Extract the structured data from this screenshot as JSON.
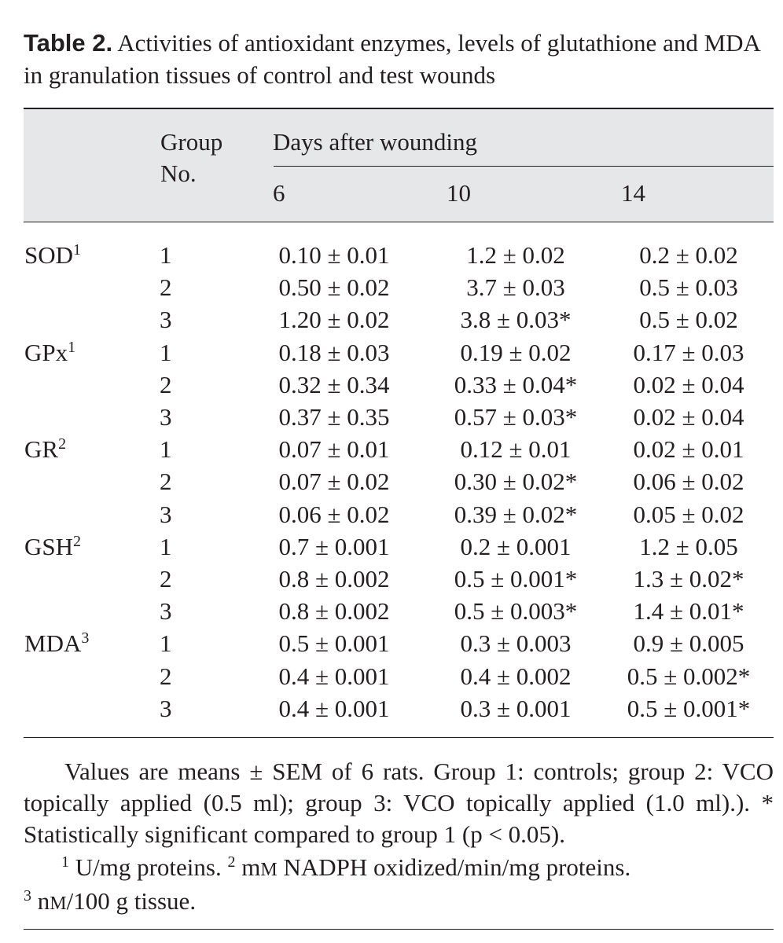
{
  "caption": {
    "label": "Table 2.",
    "text": "Activities of antioxidant enzymes, levels of glutathione and MDA in granulation tissues of control and test wounds"
  },
  "header": {
    "group_line1": "Group",
    "group_line2": "No.",
    "span_label": "Days after wounding",
    "days": [
      "6",
      "10",
      "14"
    ]
  },
  "rows": [
    {
      "label": "SOD",
      "sup": "1",
      "group": "1",
      "d6": "0.10 ± 0.01",
      "d10": "1.2 ± 0.02",
      "d14": "0.2 ± 0.02"
    },
    {
      "label": "",
      "sup": "",
      "group": "2",
      "d6": "0.50 ± 0.02",
      "d10": "3.7 ± 0.03",
      "d14": "0.5 ± 0.03"
    },
    {
      "label": "",
      "sup": "",
      "group": "3",
      "d6": "1.20 ± 0.02",
      "d10": "3.8 ± 0.03*",
      "d14": "0.5 ± 0.02"
    },
    {
      "label": "GPx",
      "sup": "1",
      "group": "1",
      "d6": "0.18 ± 0.03",
      "d10": "0.19 ± 0.02",
      "d14": "0.17 ± 0.03"
    },
    {
      "label": "",
      "sup": "",
      "group": "2",
      "d6": "0.32 ± 0.34",
      "d10": "0.33 ± 0.04*",
      "d14": "0.02 ± 0.04"
    },
    {
      "label": "",
      "sup": "",
      "group": "3",
      "d6": "0.37 ± 0.35",
      "d10": "0.57 ± 0.03*",
      "d14": "0.02 ± 0.04"
    },
    {
      "label": "GR",
      "sup": "2",
      "group": "1",
      "d6": "0.07 ± 0.01",
      "d10": "0.12 ± 0.01",
      "d14": "0.02 ± 0.01"
    },
    {
      "label": "",
      "sup": "",
      "group": "2",
      "d6": "0.07 ± 0.02",
      "d10": "0.30 ± 0.02*",
      "d14": "0.06 ± 0.02"
    },
    {
      "label": "",
      "sup": "",
      "group": "3",
      "d6": "0.06 ± 0.02",
      "d10": "0.39 ± 0.02*",
      "d14": "0.05 ± 0.02"
    },
    {
      "label": "GSH",
      "sup": "2",
      "group": "1",
      "d6": "0.7 ± 0.001",
      "d10": "0.2 ± 0.001",
      "d14": "1.2 ± 0.05"
    },
    {
      "label": "",
      "sup": "",
      "group": "2",
      "d6": "0.8 ± 0.002",
      "d10": "0.5 ± 0.001*",
      "d14": "1.3 ± 0.02*"
    },
    {
      "label": "",
      "sup": "",
      "group": "3",
      "d6": "0.8 ± 0.002",
      "d10": "0.5 ± 0.003*",
      "d14": "1.4 ± 0.01*"
    },
    {
      "label": "MDA",
      "sup": "3",
      "group": "1",
      "d6": "0.5 ± 0.001",
      "d10": "0.3 ± 0.003",
      "d14": "0.9 ± 0.005"
    },
    {
      "label": "",
      "sup": "",
      "group": "2",
      "d6": "0.4 ± 0.001",
      "d10": "0.4 ± 0.002",
      "d14": "0.5 ± 0.002*"
    },
    {
      "label": "",
      "sup": "",
      "group": "3",
      "d6": "0.4 ± 0.001",
      "d10": "0.3 ± 0.001",
      "d14": "0.5 ± 0.001*"
    }
  ],
  "footnotes": {
    "main": "Values are means ± SEM of 6 rats. Group 1: controls; group 2: VCO topically applied (0.5 ml); group 3: VCO topically applied (1.0 ml).). * Statistically significant compared to group 1 (p < 0.05).",
    "sup1": "1",
    "note1_text": "U/mg proteins.",
    "sup2": "2",
    "note2_pre": "m",
    "note2_sc": "M",
    "note2_text": "NADPH oxidized/min/mg proteins.",
    "sup3": "3",
    "note3_pre": "n",
    "note3_sc": "M",
    "note3_text": "/100 g tissue."
  }
}
